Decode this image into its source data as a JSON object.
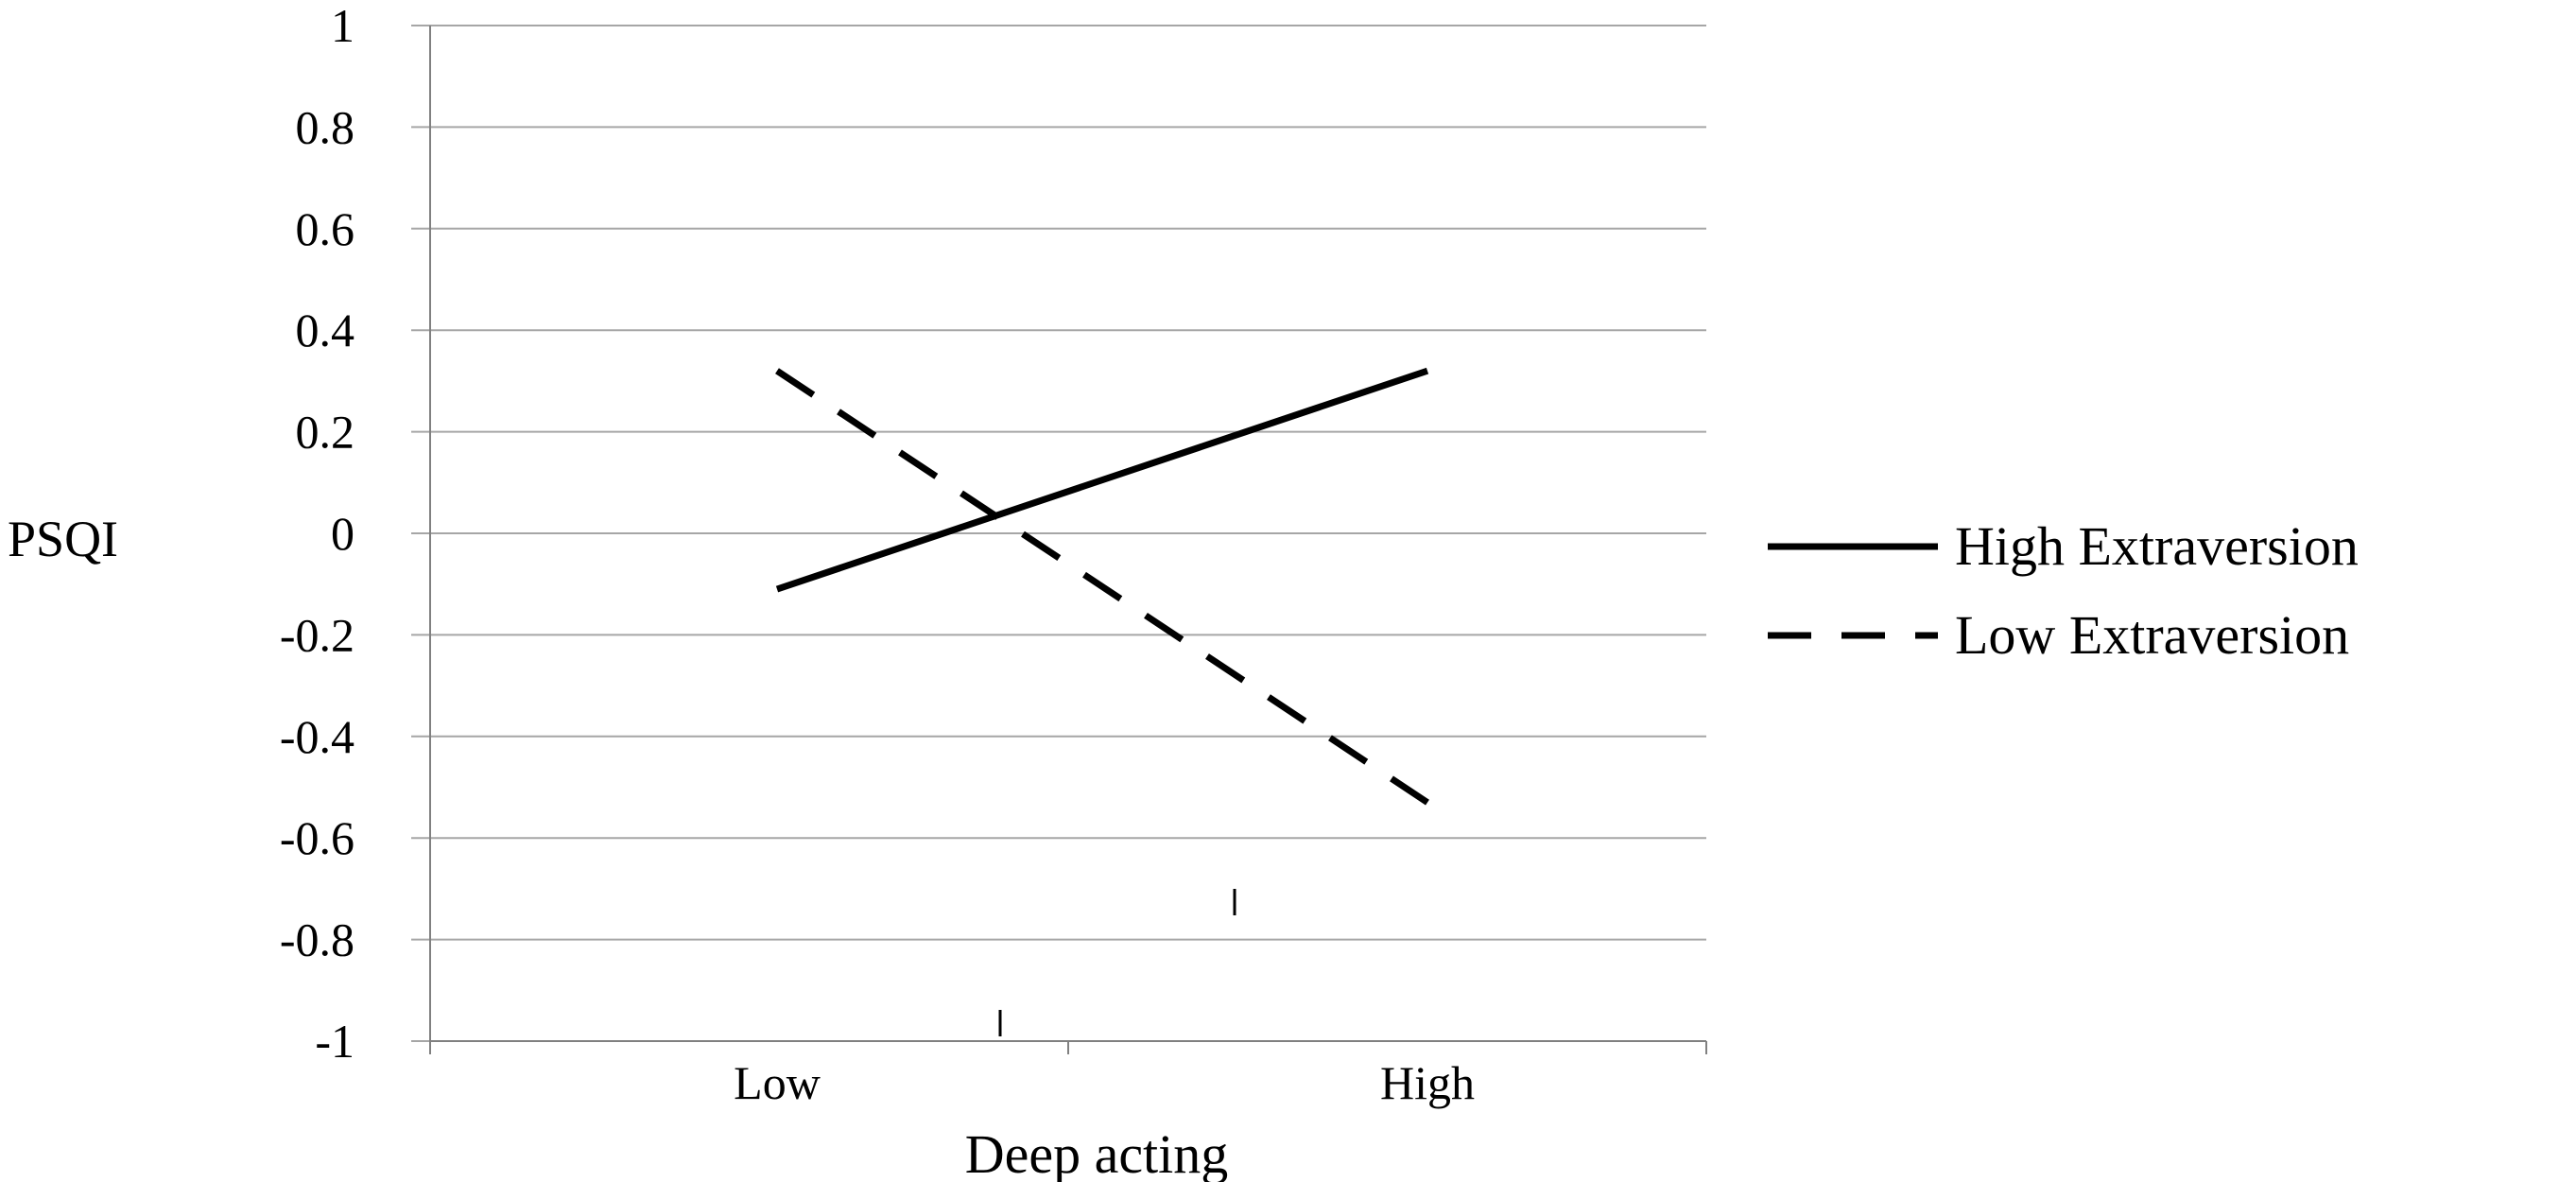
{
  "chart_data": {
    "type": "line",
    "title": "",
    "xlabel": "Deep acting",
    "ylabel": "PSQI",
    "categories": [
      "Low",
      "High"
    ],
    "ylim": [
      -1,
      1
    ],
    "yticks": [
      1,
      0.8,
      0.6,
      0.4,
      0.2,
      0,
      -0.2,
      -0.4,
      -0.6,
      -0.8,
      -1
    ],
    "ytick_labels": [
      "1",
      "0.8",
      "0.6",
      "0.4",
      "0.2",
      "0",
      "-0.2",
      "-0.4",
      "-0.6",
      "-0.8",
      "-1"
    ],
    "grid": true,
    "legend_position": "right",
    "series": [
      {
        "name": "High Extraversion",
        "values": [
          -0.11,
          0.32
        ],
        "style": "solid",
        "color": "#000000"
      },
      {
        "name": "Low Extraversion",
        "values": [
          0.32,
          -0.53
        ],
        "style": "dashed",
        "color": "#000000"
      }
    ]
  },
  "colors": {
    "grid": "#a6a6a6",
    "axis": "#808080",
    "line": "#000000",
    "background": "#ffffff"
  }
}
